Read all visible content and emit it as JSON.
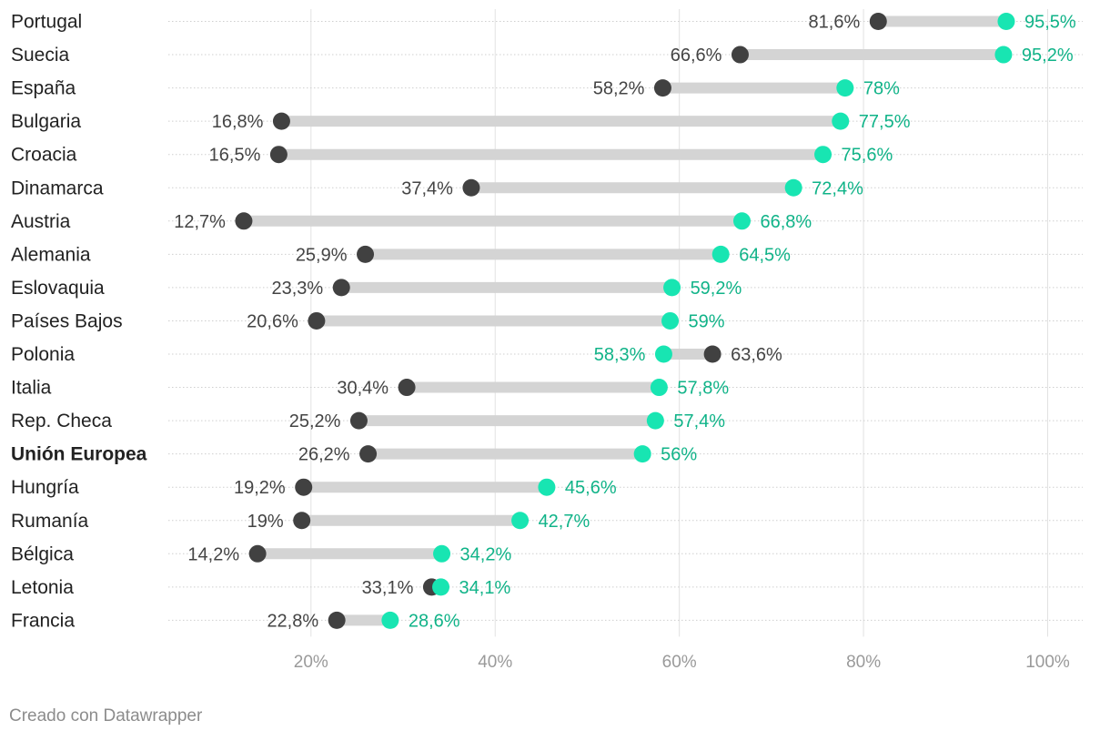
{
  "chart_data": {
    "type": "dot-range",
    "xlim": [
      0,
      100
    ],
    "x_ticks": [
      20,
      40,
      60,
      80,
      100
    ],
    "x_tick_labels": [
      "20%",
      "40%",
      "60%",
      "80%",
      "100%"
    ],
    "series": [
      {
        "name": "start",
        "color": "#414141"
      },
      {
        "name": "end",
        "color": "#18e5b2",
        "label_color": "#10b388"
      }
    ],
    "rows": [
      {
        "label": "Portugal",
        "start": 81.6,
        "end": 95.5,
        "start_label": "81,6%",
        "end_label": "95,5%",
        "bold": false
      },
      {
        "label": "Suecia",
        "start": 66.6,
        "end": 95.2,
        "start_label": "66,6%",
        "end_label": "95,2%",
        "bold": false
      },
      {
        "label": "España",
        "start": 58.2,
        "end": 78,
        "start_label": "58,2%",
        "end_label": "78%",
        "bold": false
      },
      {
        "label": "Bulgaria",
        "start": 16.8,
        "end": 77.5,
        "start_label": "16,8%",
        "end_label": "77,5%",
        "bold": false
      },
      {
        "label": "Croacia",
        "start": 16.5,
        "end": 75.6,
        "start_label": "16,5%",
        "end_label": "75,6%",
        "bold": false
      },
      {
        "label": "Dinamarca",
        "start": 37.4,
        "end": 72.4,
        "start_label": "37,4%",
        "end_label": "72,4%",
        "bold": false
      },
      {
        "label": "Austria",
        "start": 12.7,
        "end": 66.8,
        "start_label": "12,7%",
        "end_label": "66,8%",
        "bold": false
      },
      {
        "label": "Alemania",
        "start": 25.9,
        "end": 64.5,
        "start_label": "25,9%",
        "end_label": "64,5%",
        "bold": false
      },
      {
        "label": "Eslovaquia",
        "start": 23.3,
        "end": 59.2,
        "start_label": "23,3%",
        "end_label": "59,2%",
        "bold": false
      },
      {
        "label": "Países Bajos",
        "start": 20.6,
        "end": 59,
        "start_label": "20,6%",
        "end_label": "59%",
        "bold": false
      },
      {
        "label": "Polonia",
        "start": 63.6,
        "end": 58.3,
        "start_label": "63,6%",
        "end_label": "58,3%",
        "bold": false
      },
      {
        "label": "Italia",
        "start": 30.4,
        "end": 57.8,
        "start_label": "30,4%",
        "end_label": "57,8%",
        "bold": false
      },
      {
        "label": "Rep. Checa",
        "start": 25.2,
        "end": 57.4,
        "start_label": "25,2%",
        "end_label": "57,4%",
        "bold": false
      },
      {
        "label": "Unión Europea",
        "start": 26.2,
        "end": 56,
        "start_label": "26,2%",
        "end_label": "56%",
        "bold": true
      },
      {
        "label": "Hungría",
        "start": 19.2,
        "end": 45.6,
        "start_label": "19,2%",
        "end_label": "45,6%",
        "bold": false
      },
      {
        "label": "Rumanía",
        "start": 19,
        "end": 42.7,
        "start_label": "19%",
        "end_label": "42,7%",
        "bold": false
      },
      {
        "label": "Bélgica",
        "start": 14.2,
        "end": 34.2,
        "start_label": "14,2%",
        "end_label": "34,2%",
        "bold": false
      },
      {
        "label": "Letonia",
        "start": 33.1,
        "end": 34.1,
        "start_label": "33,1%",
        "end_label": "34,1%",
        "bold": false
      },
      {
        "label": "Francia",
        "start": 22.8,
        "end": 28.6,
        "start_label": "22,8%",
        "end_label": "28,6%",
        "bold": false
      }
    ]
  },
  "footer": {
    "text": "Creado con Datawrapper"
  }
}
